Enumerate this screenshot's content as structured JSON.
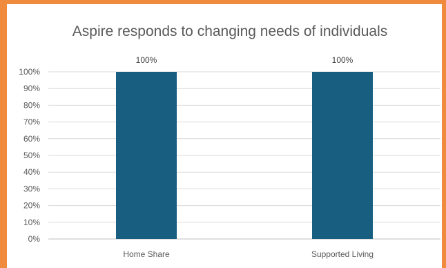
{
  "chart_data": {
    "type": "bar",
    "title": "Aspire responds to changing needs of individuals",
    "categories": [
      "Home Share",
      "Supported Living"
    ],
    "values": [
      100,
      100
    ],
    "data_labels": [
      "100%",
      "100%"
    ],
    "ylim": [
      0,
      100
    ],
    "yticks": [
      0,
      10,
      20,
      30,
      40,
      50,
      60,
      70,
      80,
      90,
      100
    ],
    "ytick_labels": [
      "0%",
      "10%",
      "20%",
      "30%",
      "40%",
      "50%",
      "60%",
      "70%",
      "80%",
      "90%",
      "100%"
    ],
    "xlabel": "",
    "ylabel": "",
    "grid": true,
    "legend": "none",
    "bar_color": "#175e80",
    "frame_color": "#f08a3c"
  }
}
